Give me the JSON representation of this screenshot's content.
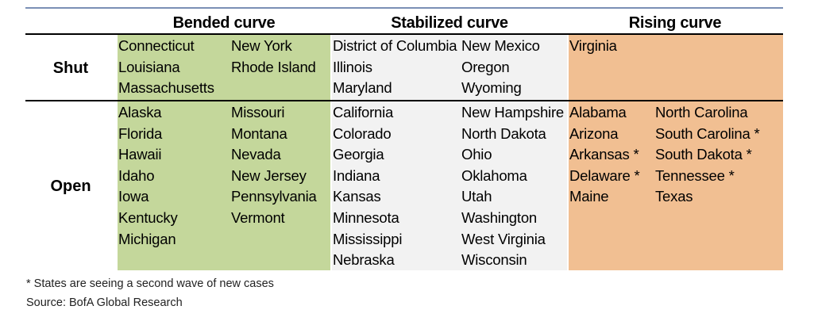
{
  "headers": {
    "bended": "Bended curve",
    "stabilized": "Stabilized curve",
    "rising": "Rising curve"
  },
  "rows": {
    "shut": "Shut",
    "open": "Open"
  },
  "cells": {
    "shut_bended_a": [
      "Connecticut",
      "Louisiana",
      "Massachusetts"
    ],
    "shut_bended_b": [
      "New York",
      "Rhode Island"
    ],
    "shut_stab_a": [
      "District of Columbia",
      "Illinois",
      "Maryland"
    ],
    "shut_stab_b": [
      "New Mexico",
      "Oregon",
      "Wyoming"
    ],
    "shut_rising_a": [
      "Virginia"
    ],
    "open_bended_a": [
      "Alaska",
      "Florida",
      "Hawaii",
      "Idaho",
      "Iowa",
      "Kentucky",
      "Michigan"
    ],
    "open_bended_b": [
      "Missouri",
      "Montana",
      "Nevada",
      "New Jersey",
      "Pennsylvania",
      "Vermont"
    ],
    "open_stab_a": [
      "California",
      "Colorado",
      "Georgia",
      "Indiana",
      "Kansas",
      "Minnesota",
      "Mississippi",
      "Nebraska"
    ],
    "open_stab_b": [
      "New Hampshire",
      "North Dakota",
      "Ohio",
      "Oklahoma",
      "Utah",
      "Washington",
      "West Virginia",
      "Wisconsin"
    ],
    "open_rising_a": [
      "Alabama",
      "Arizona",
      "Arkansas *",
      "Delaware *",
      "Maine"
    ],
    "open_rising_b": [
      "North Carolina",
      "South Carolina *",
      "South Dakota *",
      "Tennessee *",
      "Texas"
    ]
  },
  "footnote": "* States are seeing a second wave of new cases",
  "source": "Source: BofA Global Research",
  "colors": {
    "bended": "#c4d79b",
    "stabilized": "#f2f2f2",
    "rising": "#f1bf92",
    "top_rule": "#7a8fb5"
  }
}
